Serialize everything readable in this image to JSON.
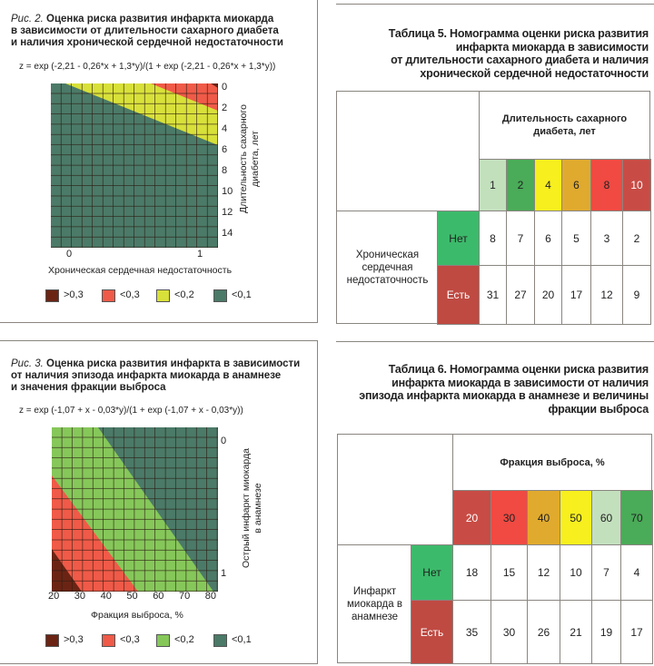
{
  "figure2": {
    "label": "Рис. 2.",
    "title": "Оценка риска развития инфаркта миокарда в зависимости от длительности сахарного диабета и наличия хронической сердечной недостаточности",
    "title_lines": [
      "Оценка риска развития инфаркта миокарда",
      "в зависимости от длительности сахарного диабета",
      "и наличия хронической сердечной недостаточности"
    ],
    "formula": "z = exp (-2,21 - 0,26*x + 1,3*y)/(1 + exp (-2,21 - 0,26*x + 1,3*y))",
    "xlabel": "Хроническая сердечная недостаточность",
    "ylabel_lines": [
      "Длительность сахарного",
      "диабета, лет"
    ],
    "x_ticks": [
      "0",
      "1"
    ],
    "y_ticks": [
      "0",
      "2",
      "4",
      "6",
      "8",
      "10",
      "12",
      "14"
    ],
    "legend": [
      {
        "label": ">0,3",
        "color": "#6b2414"
      },
      {
        "label": "<0,3",
        "color": "#f05a48"
      },
      {
        "label": "<0,2",
        "color": "#d8e03a"
      },
      {
        "label": "<0,1",
        "color": "#4b7a68"
      }
    ]
  },
  "figure3": {
    "label": "Рис. 3.",
    "title_lines": [
      "Оценка риска развития инфаркта в зависимости",
      "от наличия эпизода инфаркта миокарда в анамнезе",
      "и значения фракции выброса"
    ],
    "formula": "z = exp (-1,07 + x - 0,03*y)/(1 + exp (-1,07 + x - 0,03*y))",
    "xlabel": "Фракция выброса, %",
    "ylabel_lines": [
      "Острый инфаркт миокарда",
      "в анамнезе"
    ],
    "x_ticks": [
      "20",
      "30",
      "40",
      "50",
      "60",
      "70",
      "80"
    ],
    "y_ticks": [
      "0",
      "1"
    ],
    "legend": [
      {
        "label": ">0,3",
        "color": "#6b2414"
      },
      {
        "label": "<0,3",
        "color": "#f05a48"
      },
      {
        "label": "<0,2",
        "color": "#86c75a"
      },
      {
        "label": "<0,1",
        "color": "#4b7a68"
      }
    ]
  },
  "table5": {
    "title_lines": [
      "Таблица 5. Номограмма оценки риска развития",
      "инфаркта миокарда в зависимости",
      "от длительности сахарного диабета и наличия",
      "хронической сердечной недостаточности"
    ],
    "col_group_header": "Длительность сахарного диабета, лет",
    "columns": [
      {
        "label": "1",
        "color": "#c3e0bd"
      },
      {
        "label": "2",
        "color": "#4aab58"
      },
      {
        "label": "4",
        "color": "#f7ef1e"
      },
      {
        "label": "6",
        "color": "#e0aa2e"
      },
      {
        "label": "8",
        "color": "#f04a42"
      },
      {
        "label": "10",
        "color": "#c84c45"
      }
    ],
    "row_group_header": "Хроническая сердечная недостаточность",
    "rows": [
      {
        "label": "Нет",
        "color": "#3cba6b",
        "values": [
          "8",
          "7",
          "6",
          "5",
          "3",
          "2"
        ]
      },
      {
        "label": "Есть",
        "color": "#bf4a42",
        "values": [
          "31",
          "27",
          "20",
          "17",
          "12",
          "9"
        ]
      }
    ]
  },
  "table6": {
    "title_lines": [
      "Таблица 6. Номограмма оценки риска развития",
      "инфаркта миокарда в зависимости от наличия",
      "эпизода инфаркта миокарда в анамнезе и величины",
      "фракции выброса"
    ],
    "col_group_header": "Фракция выброса, %",
    "columns": [
      {
        "label": "20",
        "color": "#c84c45"
      },
      {
        "label": "30",
        "color": "#f04a42"
      },
      {
        "label": "40",
        "color": "#e0aa2e"
      },
      {
        "label": "50",
        "color": "#f7ef1e"
      },
      {
        "label": "60",
        "color": "#c3e0bd"
      },
      {
        "label": "70",
        "color": "#4aab58"
      }
    ],
    "row_group_header": "Инфаркт миокарда в анамнезе",
    "rows": [
      {
        "label": "Нет",
        "color": "#3cba6b",
        "values": [
          "18",
          "15",
          "12",
          "10",
          "7",
          "4"
        ]
      },
      {
        "label": "Есть",
        "color": "#bf4a42",
        "values": [
          "35",
          "30",
          "26",
          "21",
          "19",
          "17"
        ]
      }
    ]
  }
}
